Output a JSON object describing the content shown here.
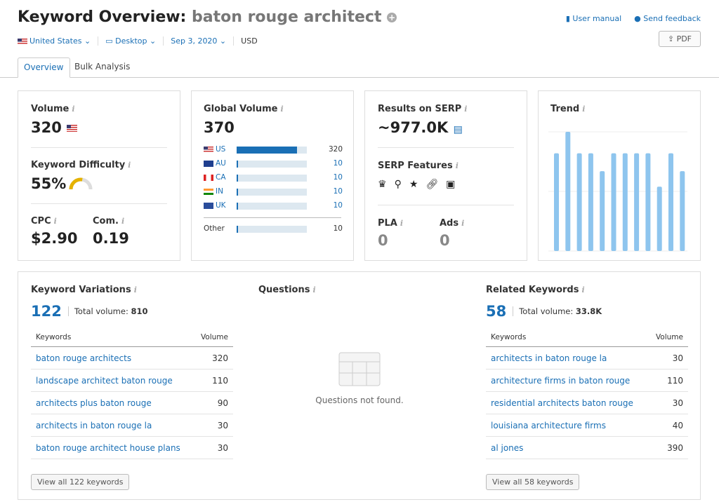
{
  "header": {
    "title_prefix": "Keyword Overview:",
    "keyword": "baton rouge architect",
    "user_manual": "User manual",
    "send_feedback": "Send feedback",
    "pdf": "PDF"
  },
  "filters": {
    "country": "United States",
    "device": "Desktop",
    "date": "Sep 3, 2020",
    "currency": "USD"
  },
  "tabs": [
    "Overview",
    "Bulk Analysis"
  ],
  "volume": {
    "label": "Volume",
    "value": "320",
    "kd_label": "Keyword Difficulty",
    "kd_value": "55%",
    "kd_fraction": 0.55,
    "cpc_label": "CPC",
    "cpc_value": "$2.90",
    "com_label": "Com.",
    "com_value": "0.19"
  },
  "global": {
    "label": "Global Volume",
    "value": "370",
    "rows": [
      {
        "c": "US",
        "v": "320",
        "f": 0.86
      },
      {
        "c": "AU",
        "v": "10",
        "f": 0.02
      },
      {
        "c": "CA",
        "v": "10",
        "f": 0.02
      },
      {
        "c": "IN",
        "v": "10",
        "f": 0.02
      },
      {
        "c": "UK",
        "v": "10",
        "f": 0.02
      }
    ],
    "other_label": "Other",
    "other_value": "10",
    "other_f": 0.02
  },
  "serp": {
    "label": "Results on SERP",
    "value": "~977.0K",
    "features_label": "SERP Features",
    "features": [
      "crown-icon",
      "pin-icon",
      "star-icon",
      "link-icon",
      "image-icon"
    ],
    "pla_label": "PLA",
    "pla_value": "0",
    "ads_label": "Ads",
    "ads_value": "0"
  },
  "trend": {
    "label": "Trend",
    "values": [
      0.82,
      1,
      0.82,
      0.82,
      0.67,
      0.82,
      0.82,
      0.82,
      0.82,
      0.54,
      0.82,
      0.67
    ],
    "color": "#8ec5ee"
  },
  "variations": {
    "label": "Keyword Variations",
    "count": "122",
    "total_label": "Total volume:",
    "total": "810",
    "col_kw": "Keywords",
    "col_vol": "Volume",
    "rows": [
      [
        "baton rouge architects",
        "320"
      ],
      [
        "landscape architect baton rouge",
        "110"
      ],
      [
        "architects plus baton rouge",
        "90"
      ],
      [
        "architects in baton rouge la",
        "30"
      ],
      [
        "baton rouge architect house plans",
        "30"
      ]
    ],
    "view_all": "View all 122 keywords"
  },
  "questions": {
    "label": "Questions",
    "empty": "Questions not found."
  },
  "related": {
    "label": "Related Keywords",
    "count": "58",
    "total_label": "Total volume:",
    "total": "33.8K",
    "col_kw": "Keywords",
    "col_vol": "Volume",
    "rows": [
      [
        "architects in baton rouge la",
        "30"
      ],
      [
        "architecture firms in baton rouge",
        "110"
      ],
      [
        "residential architects baton rouge",
        "30"
      ],
      [
        "louisiana architecture firms",
        "40"
      ],
      [
        "al jones",
        "390"
      ]
    ],
    "view_all": "View all 58 keywords"
  }
}
